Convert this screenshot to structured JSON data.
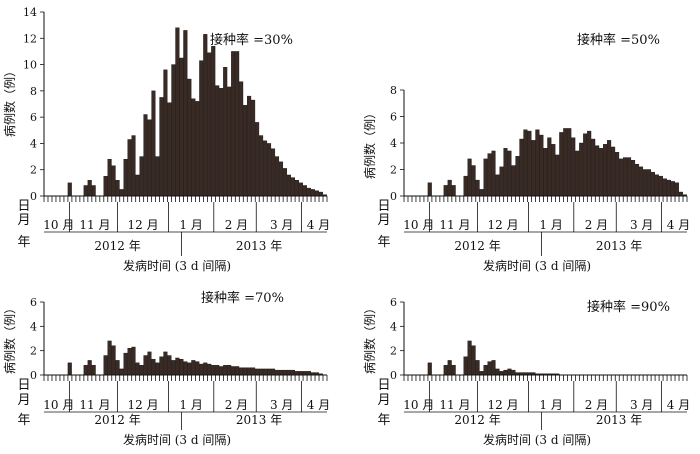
{
  "shared_labels": {
    "row_labels": [
      "日",
      "月",
      "年"
    ],
    "months": [
      "10 月",
      "11 月",
      "12 月",
      "1 月",
      "2 月",
      "3 月",
      "4 月"
    ],
    "years": [
      "2012 年",
      "2013 年"
    ],
    "xlabel": "发病时间 (3 d 间隔)",
    "ylabel": "病例数（例）"
  },
  "chart_data": [
    {
      "type": "bar",
      "title": "接种率 =30%",
      "xlabel": "发病时间 (3 d 间隔)",
      "ylabel": "病例数（例）",
      "ylim": [
        0,
        14
      ],
      "yticks": [
        0,
        2,
        4,
        6,
        8,
        10,
        12,
        14
      ],
      "x_units": "3-day intervals from early October 2012 to late April 2013",
      "values": [
        0,
        0,
        0,
        0,
        0,
        0,
        1.0,
        0,
        0,
        0,
        0.8,
        1.2,
        0.8,
        0,
        0,
        1.5,
        2.8,
        2.3,
        1.2,
        0.5,
        2.8,
        4.3,
        4.6,
        1.6,
        3.0,
        6.2,
        5.8,
        8.0,
        3.0,
        7.5,
        9.6,
        7.1,
        10.0,
        12.8,
        10.5,
        12.6,
        8.9,
        7.4,
        7.2,
        10.3,
        12.3,
        10.9,
        11.4,
        8.4,
        8.2,
        9.8,
        8.3,
        11.0,
        11.0,
        8.7,
        6.9,
        7.6,
        7.3,
        5.6,
        4.6,
        4.2,
        4.0,
        3.6,
        3.0,
        2.6,
        2.1,
        1.6,
        1.4,
        1.2,
        1.0,
        0.8,
        0.6,
        0.5,
        0.4,
        0.3,
        0.1
      ]
    },
    {
      "type": "bar",
      "title": "接种率 =50%",
      "xlabel": "发病时间 (3 d 间隔)",
      "ylabel": "病例数（例）",
      "ylim": [
        0,
        8
      ],
      "yticks": [
        0,
        2,
        4,
        6,
        8
      ],
      "x_units": "3-day intervals from early October 2012 to late April 2013",
      "values": [
        0,
        0,
        0,
        0,
        0,
        0,
        1.0,
        0,
        0,
        0,
        0.8,
        1.2,
        0.8,
        0,
        0,
        1.5,
        2.8,
        2.3,
        1.2,
        0.5,
        2.8,
        3.2,
        3.4,
        1.6,
        2.2,
        3.6,
        3.4,
        2.3,
        3.0,
        4.3,
        5.0,
        4.9,
        4.2,
        5.0,
        4.6,
        3.6,
        4.4,
        3.9,
        3.1,
        4.8,
        5.1,
        5.1,
        4.4,
        3.4,
        4.0,
        4.7,
        4.9,
        4.3,
        3.8,
        3.6,
        3.9,
        4.2,
        3.7,
        3.3,
        2.8,
        2.9,
        2.9,
        2.7,
        2.4,
        2.2,
        2.0,
        2.0,
        1.8,
        1.6,
        1.5,
        1.3,
        1.2,
        1.1,
        1.0,
        0.3,
        0.1
      ]
    },
    {
      "type": "bar",
      "title": "接种率 =70%",
      "xlabel": "发病时间 (3 d 间隔)",
      "ylabel": "病例数（例）",
      "ylim": [
        0,
        6
      ],
      "yticks": [
        0,
        2,
        4,
        6
      ],
      "x_units": "3-day intervals from early October 2012 to late April 2013",
      "values": [
        0,
        0,
        0,
        0,
        0,
        0,
        1.0,
        0,
        0,
        0,
        0.8,
        1.2,
        0.8,
        0,
        0,
        1.6,
        2.8,
        2.4,
        1.2,
        0.5,
        1.8,
        2.2,
        2.3,
        1.0,
        0.8,
        1.6,
        1.9,
        1.3,
        1.0,
        1.5,
        1.9,
        1.6,
        1.2,
        1.4,
        1.3,
        1.1,
        1.0,
        1.2,
        1.1,
        0.9,
        1.0,
        0.9,
        0.8,
        0.8,
        0.7,
        0.8,
        0.8,
        0.7,
        0.7,
        0.6,
        0.6,
        0.6,
        0.6,
        0.5,
        0.5,
        0.5,
        0.5,
        0.5,
        0.4,
        0.4,
        0.4,
        0.4,
        0.4,
        0.3,
        0.3,
        0.3,
        0.3,
        0.2,
        0.2,
        0.1,
        0
      ]
    },
    {
      "type": "bar",
      "title": "接种率 =90%",
      "xlabel": "发病时间 (3 d 间隔)",
      "ylabel": "病例数（例）",
      "ylim": [
        0,
        6
      ],
      "yticks": [
        0,
        2,
        4,
        6
      ],
      "x_units": "3-day intervals from early October 2012 to late April 2013",
      "values": [
        0,
        0,
        0,
        0,
        0,
        0,
        1.0,
        0,
        0,
        0,
        0.8,
        1.2,
        0.8,
        0,
        0,
        1.5,
        2.8,
        2.4,
        1.2,
        0.3,
        0.8,
        1.1,
        1.2,
        0.5,
        0.3,
        0.4,
        0.5,
        0.4,
        0.2,
        0.2,
        0.2,
        0.2,
        0.2,
        0.1,
        0.1,
        0.1,
        0.1,
        0.1,
        0.1,
        0,
        0,
        0,
        0,
        0,
        0,
        0,
        0,
        0,
        0,
        0,
        0,
        0,
        0,
        0,
        0,
        0,
        0,
        0,
        0,
        0,
        0,
        0,
        0,
        0,
        0,
        0,
        0,
        0,
        0,
        0,
        0
      ]
    }
  ]
}
